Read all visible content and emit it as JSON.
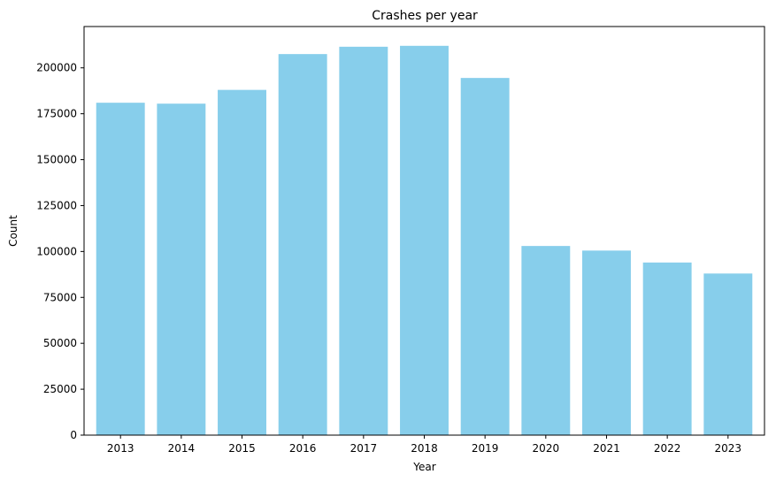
{
  "chart_data": {
    "type": "bar",
    "title": "Crashes per year",
    "xlabel": "Year",
    "ylabel": "Count",
    "categories": [
      "2013",
      "2014",
      "2015",
      "2016",
      "2017",
      "2018",
      "2019",
      "2020",
      "2021",
      "2022",
      "2023"
    ],
    "values": [
      181000,
      180500,
      188000,
      207500,
      211500,
      212000,
      194500,
      103000,
      100500,
      94000,
      88000
    ],
    "ylim": [
      0,
      222500
    ],
    "yticks": [
      "0",
      "25000",
      "50000",
      "75000",
      "100000",
      "125000",
      "150000",
      "175000",
      "200000"
    ],
    "bar_color": "#87ceeb",
    "grid": false,
    "legend": "none"
  }
}
